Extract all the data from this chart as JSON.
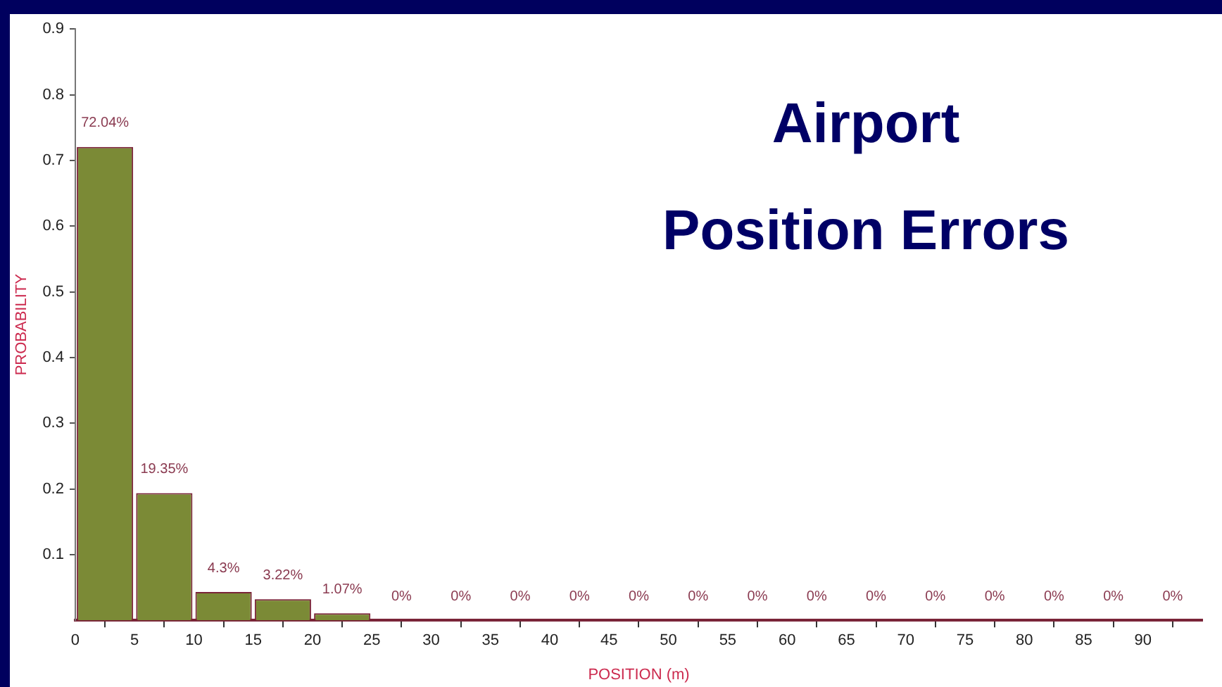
{
  "chart_data": {
    "type": "histogram",
    "title": "Airport\nPosition Errors",
    "xlabel": "POSITION (m)",
    "ylabel": "PROBABILITY",
    "bins": [
      0,
      5,
      10,
      15,
      20,
      25,
      30,
      35,
      40,
      45,
      50,
      55,
      60,
      65,
      70,
      75,
      80,
      85,
      90,
      95
    ],
    "values": [
      0.7204,
      0.1935,
      0.043,
      0.0322,
      0.0107,
      0,
      0,
      0,
      0,
      0,
      0,
      0,
      0,
      0,
      0,
      0,
      0,
      0,
      0
    ],
    "value_labels": [
      "72.04%",
      "19.35%",
      "4.3%",
      "3.22%",
      "1.07%",
      "0%",
      "0%",
      "0%",
      "0%",
      "0%",
      "0%",
      "0%",
      "0%",
      "0%",
      "0%",
      "0%",
      "0%",
      "0%",
      "0%"
    ],
    "color": "#7b8a36",
    "xlim": [
      0,
      95
    ],
    "xticks": [
      0,
      5,
      10,
      15,
      20,
      25,
      30,
      35,
      40,
      45,
      50,
      55,
      60,
      65,
      70,
      75,
      80,
      85,
      90
    ],
    "ylim": [
      0,
      0.9
    ],
    "yticks": [
      0.1,
      0.2,
      0.3,
      0.4,
      0.5,
      0.6,
      0.7,
      0.8,
      0.9
    ]
  }
}
